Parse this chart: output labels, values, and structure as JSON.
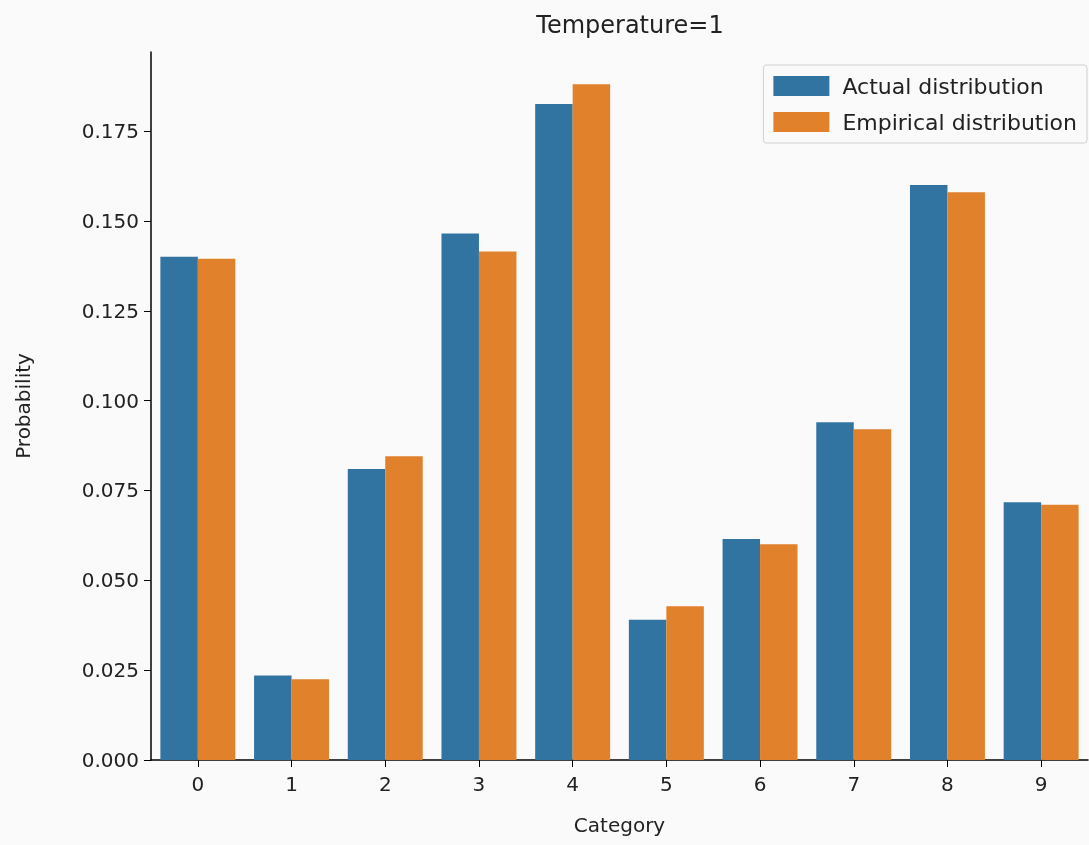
{
  "chart_data": {
    "type": "bar",
    "title": "Temperature=1",
    "xlabel": "Category",
    "ylabel": "Probability",
    "categories": [
      "0",
      "1",
      "2",
      "3",
      "4",
      "5",
      "6",
      "7",
      "8",
      "9"
    ],
    "series": [
      {
        "name": "Actual distribution",
        "color": "#3274a1",
        "values": [
          0.14,
          0.0235,
          0.081,
          0.1465,
          0.1825,
          0.039,
          0.0615,
          0.094,
          0.16,
          0.0717
        ]
      },
      {
        "name": "Empirical distribution",
        "color": "#e1812c",
        "values": [
          0.1395,
          0.0225,
          0.0845,
          0.1415,
          0.188,
          0.0428,
          0.06,
          0.092,
          0.158,
          0.071
        ]
      }
    ],
    "ylim": [
      0,
      0.197
    ],
    "yticks": [
      {
        "value": 0,
        "label": "0.000"
      },
      {
        "value": 0.025,
        "label": "0.025"
      },
      {
        "value": 0.05,
        "label": "0.050"
      },
      {
        "value": 0.075,
        "label": "0.075"
      },
      {
        "value": 0.1,
        "label": "0.100"
      },
      {
        "value": 0.125,
        "label": "0.125"
      },
      {
        "value": 0.15,
        "label": "0.150"
      },
      {
        "value": 0.175,
        "label": "0.175"
      }
    ],
    "grid": false,
    "legend": "top right"
  }
}
